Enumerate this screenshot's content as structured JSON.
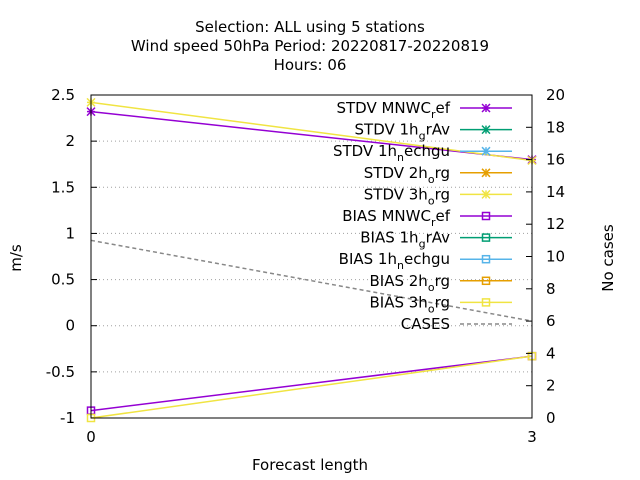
{
  "chart_data": {
    "type": "line",
    "title_lines": [
      "Selection: ALL using     5 stations",
      "Wind speed 50hPa   Period: 20220817-20220819",
      "Hours:  06"
    ],
    "xlabel": "Forecast length",
    "ylabel": "m/s",
    "y2label": "No cases",
    "x_ticks": [
      0,
      3
    ],
    "xlim": [
      0,
      3
    ],
    "ylim": [
      -1,
      2.5
    ],
    "y_ticks": [
      "-1",
      "-0.5",
      "0",
      "0.5",
      "1",
      "1.5",
      "2",
      "2.5"
    ],
    "y2lim": [
      0,
      20
    ],
    "y2_ticks": [
      "0",
      "2",
      "4",
      "6",
      "8",
      "10",
      "12",
      "14",
      "16",
      "18",
      "20"
    ],
    "grid": "horizontal dotted",
    "legend_position": "top-right",
    "x": [
      0,
      3
    ],
    "series": [
      {
        "name": "STDV MNWC_ref",
        "label_main": "STDV MNWC",
        "label_sub": "r",
        "label_tail": "ef",
        "color": "#9400d3",
        "marker": "x-star",
        "values": [
          2.32,
          1.8
        ],
        "axis": "y"
      },
      {
        "name": "STDV 1h_grAv",
        "label_main": "STDV 1h",
        "label_sub": "g",
        "label_tail": "rAv",
        "color": "#009e73",
        "marker": "x-star",
        "values": [
          null,
          null
        ],
        "axis": "y"
      },
      {
        "name": "STDV 1h_nechgu",
        "label_main": "STDV 1h",
        "label_sub": "n",
        "label_tail": "echgu",
        "color": "#56b4e9",
        "marker": "x-star",
        "values": [
          null,
          null
        ],
        "axis": "y"
      },
      {
        "name": "STDV 2h_org",
        "label_main": "STDV 2h",
        "label_sub": "o",
        "label_tail": "rg",
        "color": "#e69f00",
        "marker": "x-star",
        "values": [
          null,
          null
        ],
        "axis": "y"
      },
      {
        "name": "STDV 3h_org",
        "label_main": "STDV 3h",
        "label_sub": "o",
        "label_tail": "rg",
        "color": "#f0e442",
        "marker": "x-star",
        "values": [
          2.42,
          1.79
        ],
        "axis": "y"
      },
      {
        "name": "BIAS MNWC_ref",
        "label_main": "BIAS MNWC",
        "label_sub": "r",
        "label_tail": "ef",
        "color": "#9400d3",
        "marker": "square",
        "values": [
          -0.92,
          -0.33
        ],
        "axis": "y"
      },
      {
        "name": "BIAS 1h_grAv",
        "label_main": "BIAS 1h",
        "label_sub": "g",
        "label_tail": "rAv",
        "color": "#009e73",
        "marker": "square",
        "values": [
          null,
          null
        ],
        "axis": "y"
      },
      {
        "name": "BIAS 1h_nechgu",
        "label_main": "BIAS 1h",
        "label_sub": "n",
        "label_tail": "echgu",
        "color": "#56b4e9",
        "marker": "square",
        "values": [
          null,
          null
        ],
        "axis": "y"
      },
      {
        "name": "BIAS 2h_org",
        "label_main": "BIAS 2h",
        "label_sub": "o",
        "label_tail": "rg",
        "color": "#e69f00",
        "marker": "square",
        "values": [
          null,
          null
        ],
        "axis": "y"
      },
      {
        "name": "BIAS 3h_org",
        "label_main": "BIAS 3h",
        "label_sub": "o",
        "label_tail": "rg",
        "color": "#f0e442",
        "marker": "square",
        "values": [
          -1.0,
          -0.33
        ],
        "axis": "y"
      },
      {
        "name": "CASES",
        "label_main": "CASES",
        "label_sub": "",
        "label_tail": "",
        "color": "#888888",
        "marker": "dashed",
        "values": [
          11,
          6
        ],
        "axis": "y2"
      }
    ]
  }
}
